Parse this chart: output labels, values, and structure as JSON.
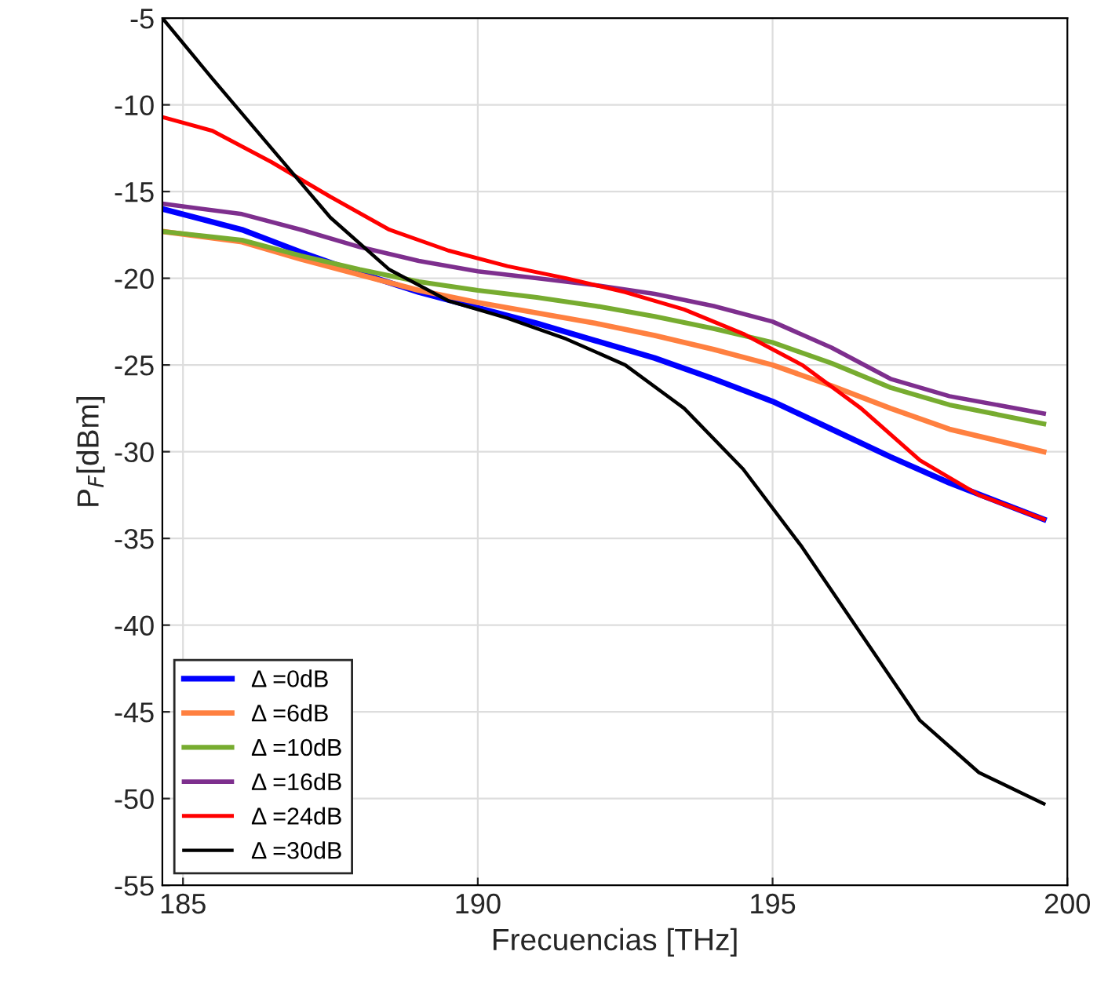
{
  "chart_data": {
    "type": "line",
    "xlabel": "Frecuencias [THz]",
    "ylabel": "P$_{F}$[dBm]",
    "xlim": [
      184.65,
      200
    ],
    "ylim": [
      -55,
      -5
    ],
    "xticks": [
      185,
      190,
      195,
      200
    ],
    "yticks": [
      -55,
      -50,
      -45,
      -40,
      -35,
      -30,
      -25,
      -20,
      -15,
      -10,
      -5
    ],
    "grid": true,
    "legend": "bottom left",
    "marker": "none",
    "line_style": "solid",
    "series": [
      {
        "name": "Δ =0dB",
        "color": "#0000ff",
        "x": [
          184.65,
          186,
          187,
          188,
          189,
          190,
          191,
          192,
          193,
          194,
          195,
          196,
          197,
          198,
          199.6
        ],
        "values": [
          -16,
          -17.2,
          -18.5,
          -19.7,
          -20.8,
          -21.7,
          -22.6,
          -23.6,
          -24.6,
          -25.8,
          -27.1,
          -28.7,
          -30.3,
          -31.8,
          -33.9
        ]
      },
      {
        "name": "Δ =6dB",
        "color": "#ff8040",
        "x": [
          184.65,
          186,
          187,
          188,
          189,
          190,
          191,
          192,
          193,
          194,
          195,
          196,
          197,
          198,
          199.6
        ],
        "values": [
          -17.3,
          -17.9,
          -18.9,
          -19.8,
          -20.7,
          -21.4,
          -22,
          -22.6,
          -23.3,
          -24.1,
          -25,
          -26.2,
          -27.5,
          -28.7,
          -30
        ]
      },
      {
        "name": "Δ =10dB",
        "color": "#77ac30",
        "x": [
          184.65,
          186,
          187,
          188,
          189,
          190,
          191,
          192,
          193,
          194,
          195,
          196,
          197,
          198,
          199.6
        ],
        "values": [
          -17.3,
          -17.8,
          -18.7,
          -19.5,
          -20.2,
          -20.7,
          -21.1,
          -21.6,
          -22.2,
          -22.9,
          -23.7,
          -24.9,
          -26.3,
          -27.3,
          -28.4
        ]
      },
      {
        "name": "Δ =16dB",
        "color": "#7e2f8e",
        "x": [
          184.65,
          186,
          187,
          188,
          189,
          190,
          191,
          192,
          193,
          194,
          195,
          196,
          197,
          198,
          199.6
        ],
        "values": [
          -15.7,
          -16.3,
          -17.2,
          -18.2,
          -19,
          -19.6,
          -20,
          -20.4,
          -20.9,
          -21.6,
          -22.5,
          -24,
          -25.8,
          -26.8,
          -27.8
        ]
      },
      {
        "name": "Δ =24dB",
        "color": "#ff0000",
        "x": [
          184.65,
          185.5,
          186.5,
          187.5,
          188.5,
          189.5,
          190.5,
          191.5,
          192.5,
          193.5,
          194.5,
          195.5,
          196.5,
          197.5,
          198.5,
          199.6
        ],
        "values": [
          -10.7,
          -11.5,
          -13.3,
          -15.3,
          -17.2,
          -18.4,
          -19.3,
          -20,
          -20.8,
          -21.8,
          -23.2,
          -25,
          -27.5,
          -30.5,
          -32.5,
          -33.9
        ]
      },
      {
        "name": "Δ =30dB",
        "color": "#000000",
        "x": [
          184.65,
          185.5,
          186.5,
          187.5,
          188.5,
          189.5,
          190.5,
          191.5,
          192.5,
          193.5,
          194.5,
          195.5,
          196.5,
          197.5,
          198.5,
          199.6
        ],
        "values": [
          -5,
          -8.5,
          -12.5,
          -16.5,
          -19.5,
          -21.3,
          -22.3,
          -23.5,
          -25,
          -27.5,
          -31,
          -35.5,
          -40.5,
          -45.5,
          -48.5,
          -50.3
        ]
      }
    ]
  }
}
